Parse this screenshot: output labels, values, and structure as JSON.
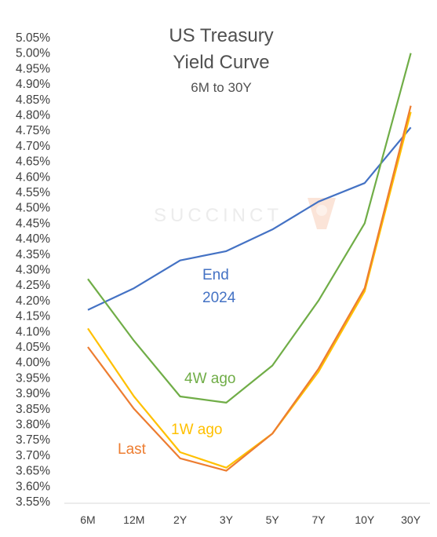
{
  "chart_data": {
    "type": "line",
    "title": "US Treasury",
    "title_line2": "Yield Curve",
    "subtitle": "6M to 30Y",
    "watermark": "SUCCINCT",
    "categories": [
      "6M",
      "12M",
      "2Y",
      "3Y",
      "5Y",
      "7Y",
      "10Y",
      "30Y"
    ],
    "y_ticks": [
      "5.05%",
      "5.00%",
      "4.95%",
      "4.90%",
      "4.85%",
      "4.80%",
      "4.75%",
      "4.70%",
      "4.65%",
      "4.60%",
      "4.55%",
      "4.50%",
      "4.45%",
      "4.40%",
      "4.35%",
      "4.30%",
      "4.25%",
      "4.20%",
      "4.15%",
      "4.10%",
      "4.05%",
      "4.00%",
      "3.95%",
      "3.90%",
      "3.85%",
      "3.80%",
      "3.75%",
      "3.70%",
      "3.65%",
      "3.60%",
      "3.55%"
    ],
    "ylim": [
      3.55,
      5.05
    ],
    "grid": false,
    "series": [
      {
        "name": "End 2024",
        "label_line1": "End",
        "label_line2": "2024",
        "color": "#4472c4",
        "values": [
          4.17,
          4.24,
          4.33,
          4.36,
          4.43,
          4.52,
          4.58,
          4.76
        ]
      },
      {
        "name": "4W ago",
        "color": "#70ad47",
        "values": [
          4.27,
          4.07,
          3.89,
          3.87,
          3.99,
          4.2,
          4.45,
          5.0
        ]
      },
      {
        "name": "1W ago",
        "color": "#ffc000",
        "values": [
          4.11,
          3.89,
          3.71,
          3.66,
          3.77,
          3.97,
          4.23,
          4.81
        ]
      },
      {
        "name": "Last",
        "color": "#ed7d31",
        "values": [
          4.05,
          3.85,
          3.69,
          3.65,
          3.77,
          3.98,
          4.24,
          4.83
        ]
      }
    ]
  }
}
